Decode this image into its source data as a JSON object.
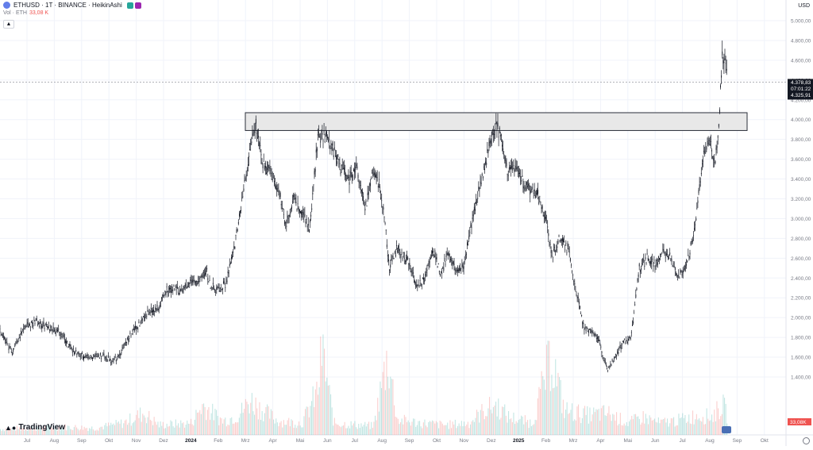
{
  "header": {
    "symbol": "ETHUSD · 1T · BINANCE · HeikinAshi",
    "volume_label": "Vol · ETH",
    "volume_value": "33,08 K",
    "currency": "USD",
    "icon": "ethereum-icon",
    "collapse_icon": "chevron-up-icon"
  },
  "branding": {
    "logo_text": "TradingView",
    "logo_icon": "tradingview-logo-icon"
  },
  "colors": {
    "candle": "#131722",
    "grid": "#f0f3fa",
    "volume_up": "#26a69a",
    "volume_down": "#ef5350",
    "zone_fill": "#e8e8e8",
    "zone_stroke": "#2a2e39",
    "price_tag": "#131722",
    "volume_tag": "#ef5350"
  },
  "price_tag": {
    "price": "4.378,83",
    "countdown": "07:01:22",
    "previous": "4.325,91"
  },
  "volume_tag": "33,08K",
  "chart_data": {
    "type": "candlestick",
    "style": "Heikin Ashi",
    "interval": "1T",
    "y_scale": "linear",
    "ylim": [
      1100,
      5100
    ],
    "y_ticks": [
      1400,
      1600,
      1800,
      2000,
      2200,
      2400,
      2600,
      2800,
      3000,
      3200,
      3400,
      3600,
      3800,
      4000,
      4200,
      4400,
      4600,
      4800,
      5000
    ],
    "y_tick_labels": [
      "1.400,00",
      "1.600,00",
      "1.800,00",
      "2.000,00",
      "2.200,00",
      "2.400,00",
      "2.600,00",
      "2.800,00",
      "3.000,00",
      "3.200,00",
      "3.400,00",
      "3.600,00",
      "3.800,00",
      "4.000,00",
      "4.200,00",
      "4.400,00",
      "4.600,00",
      "4.800,00",
      "5.000,00"
    ],
    "x_labels": [
      "Jul",
      "Aug",
      "Sep",
      "Okt",
      "Nov",
      "Dez",
      "2024",
      "Feb",
      "Mrz",
      "Apr",
      "Mai",
      "Jun",
      "Jul",
      "Aug",
      "Sep",
      "Okt",
      "Nov",
      "Dez",
      "2025",
      "Feb",
      "Mrz",
      "Apr",
      "Mai",
      "Jun",
      "Jul",
      "Aug",
      "Sep",
      "Okt"
    ],
    "current_price_line": 4378.83,
    "resistance_zone": {
      "low": 3890,
      "high": 4070,
      "from": "Mrz",
      "to": "Sep"
    },
    "price_path": [
      [
        0,
        1880
      ],
      [
        15,
        1650
      ],
      [
        30,
        1900
      ],
      [
        45,
        1960
      ],
      [
        60,
        1900
      ],
      [
        75,
        1860
      ],
      [
        88,
        1700
      ],
      [
        100,
        1620
      ],
      [
        115,
        1600
      ],
      [
        130,
        1620
      ],
      [
        140,
        1560
      ],
      [
        150,
        1600
      ],
      [
        160,
        1780
      ],
      [
        175,
        1920
      ],
      [
        185,
        2040
      ],
      [
        200,
        2100
      ],
      [
        210,
        2280
      ],
      [
        220,
        2300
      ],
      [
        230,
        2250
      ],
      [
        240,
        2380
      ],
      [
        250,
        2350
      ],
      [
        260,
        2480
      ],
      [
        265,
        2320
      ],
      [
        275,
        2280
      ],
      [
        285,
        2350
      ],
      [
        295,
        2700
      ],
      [
        305,
        3200
      ],
      [
        315,
        3700
      ],
      [
        322,
        3950
      ],
      [
        330,
        3550
      ],
      [
        340,
        3500
      ],
      [
        350,
        3300
      ],
      [
        360,
        2950
      ],
      [
        370,
        3200
      ],
      [
        380,
        3050
      ],
      [
        390,
        2900
      ],
      [
        400,
        3800
      ],
      [
        410,
        3850
      ],
      [
        420,
        3700
      ],
      [
        430,
        3500
      ],
      [
        440,
        3400
      ],
      [
        450,
        3500
      ],
      [
        460,
        3100
      ],
      [
        470,
        3500
      ],
      [
        478,
        3350
      ],
      [
        485,
        2950
      ],
      [
        490,
        2500
      ],
      [
        500,
        2700
      ],
      [
        515,
        2550
      ],
      [
        525,
        2300
      ],
      [
        535,
        2400
      ],
      [
        545,
        2700
      ],
      [
        555,
        2450
      ],
      [
        565,
        2650
      ],
      [
        575,
        2450
      ],
      [
        585,
        2550
      ],
      [
        595,
        3000
      ],
      [
        605,
        3350
      ],
      [
        615,
        3700
      ],
      [
        625,
        3950
      ],
      [
        632,
        3800
      ],
      [
        640,
        3450
      ],
      [
        650,
        3550
      ],
      [
        660,
        3350
      ],
      [
        670,
        3300
      ],
      [
        680,
        3200
      ],
      [
        690,
        2900
      ],
      [
        695,
        2600
      ],
      [
        705,
        2800
      ],
      [
        715,
        2700
      ],
      [
        725,
        2300
      ],
      [
        735,
        1900
      ],
      [
        745,
        1850
      ],
      [
        755,
        1750
      ],
      [
        765,
        1480
      ],
      [
        775,
        1600
      ],
      [
        785,
        1750
      ],
      [
        795,
        1800
      ],
      [
        805,
        2500
      ],
      [
        815,
        2600
      ],
      [
        825,
        2550
      ],
      [
        835,
        2650
      ],
      [
        845,
        2600
      ],
      [
        855,
        2400
      ],
      [
        865,
        2550
      ],
      [
        875,
        2900
      ],
      [
        885,
        3600
      ],
      [
        895,
        3800
      ],
      [
        900,
        3500
      ],
      [
        905,
        3900
      ],
      [
        910,
        4700
      ],
      [
        915,
        4450
      ]
    ],
    "volume_profile": [
      [
        0,
        0.06
      ],
      [
        40,
        0.07
      ],
      [
        80,
        0.08
      ],
      [
        120,
        0.07
      ],
      [
        155,
        0.12
      ],
      [
        180,
        0.22
      ],
      [
        200,
        0.1
      ],
      [
        240,
        0.12
      ],
      [
        255,
        0.3
      ],
      [
        280,
        0.14
      ],
      [
        300,
        0.2
      ],
      [
        315,
        0.35
      ],
      [
        330,
        0.25
      ],
      [
        350,
        0.14
      ],
      [
        380,
        0.12
      ],
      [
        400,
        0.45
      ],
      [
        405,
        0.85
      ],
      [
        420,
        0.12
      ],
      [
        450,
        0.1
      ],
      [
        470,
        0.09
      ],
      [
        488,
        0.8
      ],
      [
        500,
        0.15
      ],
      [
        530,
        0.12
      ],
      [
        560,
        0.1
      ],
      [
        590,
        0.12
      ],
      [
        610,
        0.25
      ],
      [
        625,
        0.3
      ],
      [
        640,
        0.18
      ],
      [
        670,
        0.12
      ],
      [
        694,
        0.8
      ],
      [
        710,
        0.25
      ],
      [
        740,
        0.2
      ],
      [
        765,
        0.22
      ],
      [
        790,
        0.12
      ],
      [
        810,
        0.18
      ],
      [
        830,
        0.12
      ],
      [
        855,
        0.15
      ],
      [
        880,
        0.2
      ],
      [
        895,
        0.18
      ],
      [
        910,
        0.3
      ],
      [
        915,
        0.2
      ]
    ]
  }
}
